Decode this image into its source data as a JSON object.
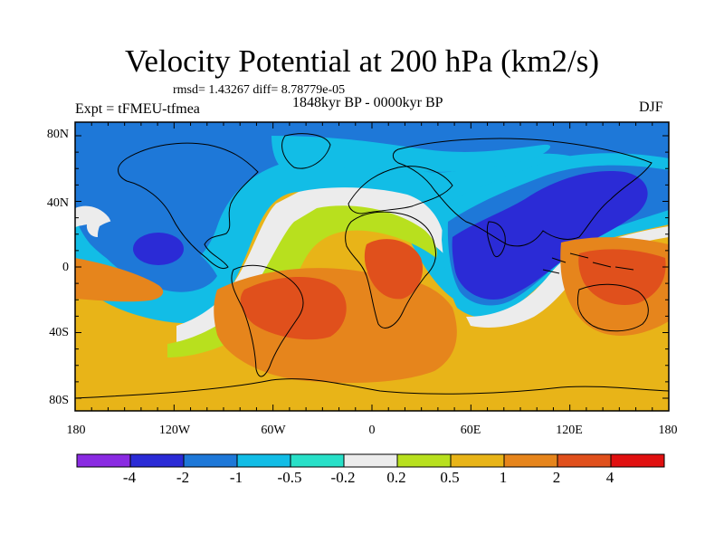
{
  "title": "Velocity Potential at 200 hPa (km2/s)",
  "stats": "rmsd= 1.43267 diff= 8.78779e-05",
  "period": "1848kyr BP - 0000kyr BP",
  "experiment": "Expt = tFMEU-tfmea",
  "season": "DJF",
  "lat_labels": [
    "80N",
    "40N",
    "0",
    "40S",
    "80S"
  ],
  "lon_labels": [
    "180",
    "120W",
    "60W",
    "0",
    "60E",
    "120E",
    "180"
  ],
  "colorbar": {
    "labels": [
      "-4",
      "-2",
      "-1",
      "-0.5",
      "-0.2",
      "0.2",
      "0.5",
      "1",
      "2",
      "4"
    ],
    "colors": [
      "#8a2be2",
      "#2b2bd6",
      "#1e78d8",
      "#12bde6",
      "#28e0c8",
      "#ececec",
      "#b8e01e",
      "#e8b418",
      "#e6851c",
      "#e0501c",
      "#e01010"
    ]
  },
  "map_colors": {
    "neg4": "#2b2bd6",
    "neg2": "#1e78d8",
    "neg1": "#12bde6",
    "neg05": "#28e0c8",
    "zero": "#ececec",
    "pos02": "#b8e01e",
    "pos05": "#e8b418",
    "pos1": "#e6851c",
    "pos2": "#e0501c"
  }
}
